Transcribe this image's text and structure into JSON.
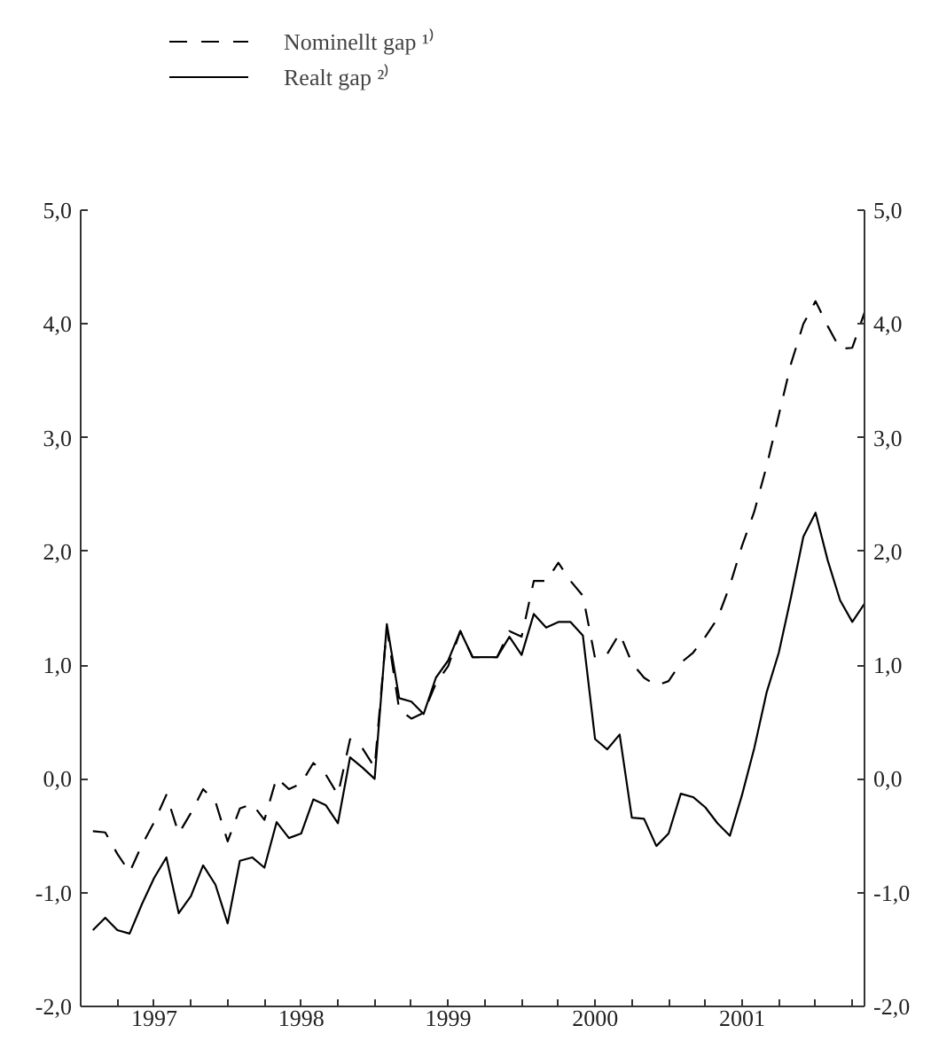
{
  "chart_data": {
    "type": "line",
    "x": [
      1997.083,
      1997.167,
      1997.25,
      1997.333,
      1997.417,
      1997.5,
      1997.583,
      1997.667,
      1997.75,
      1997.833,
      1997.917,
      1998.0,
      1998.083,
      1998.167,
      1998.25,
      1998.333,
      1998.417,
      1998.5,
      1998.583,
      1998.667,
      1998.75,
      1998.833,
      1998.917,
      1999.0,
      1999.083,
      1999.167,
      1999.25,
      1999.333,
      1999.417,
      1999.5,
      1999.583,
      1999.667,
      1999.75,
      1999.833,
      1999.917,
      2000.0,
      2000.083,
      2000.167,
      2000.25,
      2000.333,
      2000.417,
      2000.5,
      2000.583,
      2000.667,
      2000.75,
      2000.833,
      2000.917,
      2001.0,
      2001.083,
      2001.167,
      2001.25,
      2001.333,
      2001.417,
      2001.5,
      2001.583,
      2001.667,
      2001.75,
      2001.833,
      2001.917,
      2002.0,
      2002.083,
      2002.167,
      2002.25,
      2002.333
    ],
    "series": [
      {
        "name": "Nominellt gap ¹⁾",
        "color": "#000000",
        "line_style": "dashed",
        "values": [
          -0.46,
          -0.47,
          -0.66,
          -0.82,
          -0.58,
          -0.38,
          -0.14,
          -0.48,
          -0.3,
          -0.09,
          -0.2,
          -0.55,
          -0.26,
          -0.22,
          -0.36,
          0.01,
          -0.09,
          -0.04,
          0.14,
          0.04,
          -0.14,
          0.35,
          0.27,
          0.1,
          1.33,
          0.61,
          0.53,
          0.58,
          0.84,
          0.99,
          1.3,
          1.07,
          1.07,
          1.07,
          1.3,
          1.25,
          1.74,
          1.74,
          1.9,
          1.74,
          1.61,
          1.06,
          1.1,
          1.28,
          1.02,
          0.89,
          0.82,
          0.86,
          1.02,
          1.11,
          1.25,
          1.41,
          1.7,
          2.05,
          2.35,
          2.75,
          3.2,
          3.65,
          4.0,
          4.2,
          3.98,
          3.78,
          3.79,
          4.1
        ]
      },
      {
        "name": "Realt gap ²⁾",
        "color": "#000000",
        "line_style": "solid",
        "values": [
          -1.33,
          -1.22,
          -1.33,
          -1.36,
          -1.1,
          -0.87,
          -0.69,
          -1.18,
          -1.03,
          -0.76,
          -0.93,
          -1.27,
          -0.72,
          -0.69,
          -0.78,
          -0.38,
          -0.52,
          -0.48,
          -0.18,
          -0.23,
          -0.39,
          0.19,
          0.1,
          0.0,
          1.36,
          0.71,
          0.68,
          0.57,
          0.89,
          1.04,
          1.3,
          1.07,
          1.07,
          1.07,
          1.25,
          1.09,
          1.45,
          1.33,
          1.38,
          1.38,
          1.26,
          0.35,
          0.26,
          0.39,
          -0.34,
          -0.35,
          -0.59,
          -0.48,
          -0.13,
          -0.16,
          -0.25,
          -0.39,
          -0.5,
          -0.14,
          0.27,
          0.76,
          1.11,
          1.6,
          2.13,
          2.34,
          1.92,
          1.57,
          1.38,
          1.54
        ]
      }
    ],
    "xlim": [
      1997.0,
      2002.333
    ],
    "xticks": [
      {
        "value": 1997.25,
        "label": null
      },
      {
        "value": 1997.5,
        "label": "1997"
      },
      {
        "value": 1997.75,
        "label": null
      },
      {
        "value": 1998.0,
        "label": null
      },
      {
        "value": 1998.25,
        "label": null
      },
      {
        "value": 1998.5,
        "label": "1998"
      },
      {
        "value": 1998.75,
        "label": null
      },
      {
        "value": 1999.0,
        "label": null
      },
      {
        "value": 1999.25,
        "label": null
      },
      {
        "value": 1999.5,
        "label": "1999"
      },
      {
        "value": 1999.75,
        "label": null
      },
      {
        "value": 2000.0,
        "label": null
      },
      {
        "value": 2000.25,
        "label": null
      },
      {
        "value": 2000.5,
        "label": "2000"
      },
      {
        "value": 2000.75,
        "label": null
      },
      {
        "value": 2001.0,
        "label": null
      },
      {
        "value": 2001.25,
        "label": null
      },
      {
        "value": 2001.5,
        "label": "2001"
      },
      {
        "value": 2001.75,
        "label": null
      },
      {
        "value": 2002.0,
        "label": null
      },
      {
        "value": 2002.25,
        "label": null
      }
    ],
    "ylim": [
      -2.0,
      5.0
    ],
    "yticks": [
      {
        "value": -2,
        "label": "-2,0"
      },
      {
        "value": -1,
        "label": "-1,0"
      },
      {
        "value": 0,
        "label": "0,0"
      },
      {
        "value": 1,
        "label": "1,0"
      },
      {
        "value": 2,
        "label": "2,0"
      },
      {
        "value": 3,
        "label": "3,0"
      },
      {
        "value": 4,
        "label": "4,0"
      },
      {
        "value": 5,
        "label": "5,0"
      }
    ],
    "y2lim": [
      -2.0,
      5.0
    ],
    "y2ticks": [
      {
        "value": -2,
        "label": "-2,0"
      },
      {
        "value": -1,
        "label": "-1,0"
      },
      {
        "value": 0,
        "label": "0,0"
      },
      {
        "value": 1,
        "label": "1,0"
      },
      {
        "value": 2,
        "label": "2,0"
      },
      {
        "value": 3,
        "label": "3,0"
      },
      {
        "value": 4,
        "label": "4,0"
      },
      {
        "value": 5,
        "label": "5,0"
      }
    ],
    "grid": false,
    "legend": "top left"
  }
}
